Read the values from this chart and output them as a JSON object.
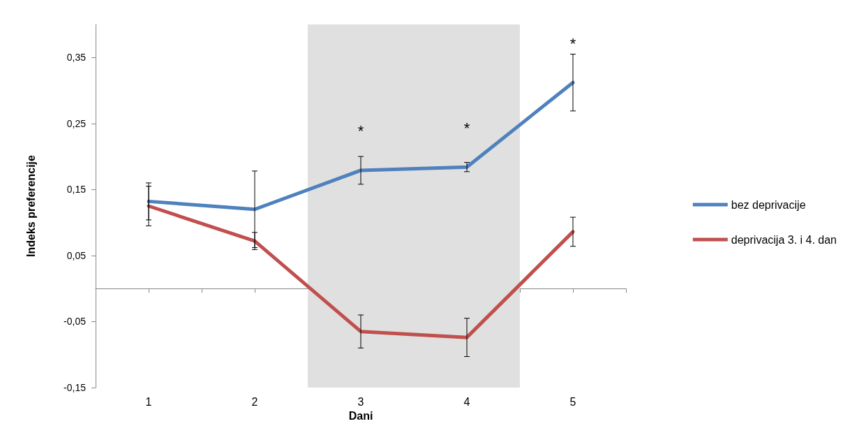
{
  "chart_data": {
    "type": "line",
    "xlabel": "Dani",
    "ylabel": "Indeks preferencije",
    "x": [
      1,
      2,
      3,
      4,
      5
    ],
    "series": [
      {
        "name": "bez deprivacije",
        "color": "#4f81bd",
        "values": [
          0.132,
          0.12,
          0.179,
          0.184,
          0.312
        ],
        "errors": [
          0.028,
          0.058,
          0.021,
          0.007,
          0.043
        ]
      },
      {
        "name": "deprivacija 3. i 4. dan",
        "color": "#c0504d",
        "values": [
          0.125,
          0.072,
          -0.065,
          -0.074,
          0.086
        ],
        "errors": [
          0.03,
          0.013,
          0.025,
          0.029,
          0.022
        ]
      }
    ],
    "xlim": [
      0.5,
      5.5
    ],
    "xticks": [
      {
        "value": 0.5,
        "label": null
      },
      1,
      {
        "value": 1.5,
        "label": null
      },
      2,
      {
        "value": 2.5,
        "label": null
      },
      3,
      {
        "value": 3.5,
        "label": null
      },
      4,
      {
        "value": 4.5,
        "label": null
      },
      5,
      {
        "value": 5.5,
        "label": null
      }
    ],
    "ylim": [
      -0.15,
      0.4
    ],
    "yticks": [
      {
        "value": -0.15,
        "label": "-0,15"
      },
      {
        "value": -0.05,
        "label": "-0,05"
      },
      {
        "value": 0.05,
        "label": "0,05"
      },
      {
        "value": 0.15,
        "label": "0,15"
      },
      {
        "value": 0.25,
        "label": "0,25"
      },
      {
        "value": 0.35,
        "label": "0,35"
      }
    ],
    "bands": [
      {
        "axis": "x",
        "from": 2.5,
        "to": 4.5,
        "color": "#e0e0e0"
      }
    ],
    "annotations": [
      {
        "text": "*",
        "x": 3,
        "y": 0.179
      },
      {
        "text": "*",
        "x": 4,
        "y": 0.184
      },
      {
        "text": "*",
        "x": 5,
        "y": 0.312
      }
    ],
    "grid": false,
    "legend": "right",
    "marker": "none",
    "line_style": "solid"
  }
}
